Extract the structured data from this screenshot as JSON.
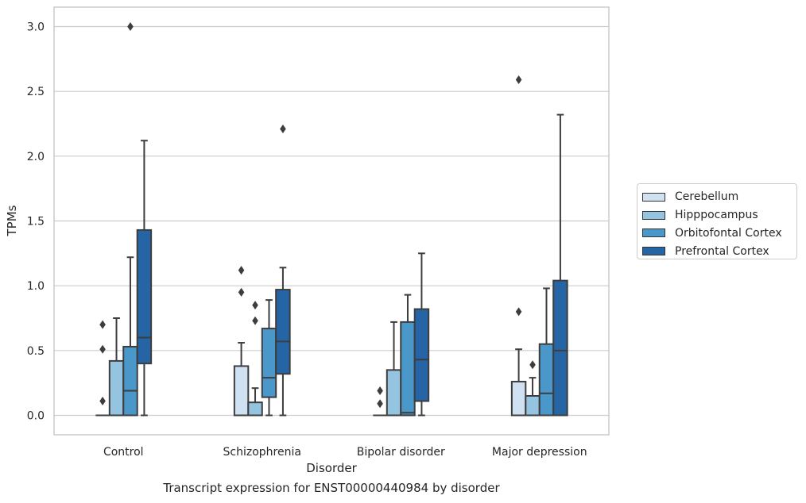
{
  "chart_data": {
    "type": "box",
    "xlabel": "Disorder",
    "ylabel": "TPMs",
    "caption": "Transcript expression for ENST00000440984 by disorder",
    "ylim": [
      -0.15,
      3.15
    ],
    "yticks": [
      0.0,
      0.5,
      1.0,
      1.5,
      2.0,
      2.5,
      3.0
    ],
    "ytick_labels": [
      "0.0",
      "0.5",
      "1.0",
      "1.5",
      "2.0",
      "2.5",
      "3.0"
    ],
    "grid": "horizontal",
    "legend_position": "right",
    "categories": [
      "Control",
      "Schizophrenia",
      "Bipolar disorder",
      "Major depression"
    ],
    "series": [
      {
        "name": "Cerebellum",
        "color": "#d0e1f2",
        "boxes": [
          {
            "whislo": 0.0,
            "q1": 0.0,
            "med": 0.0,
            "q3": 0.0,
            "whishi": 0.0,
            "fliers": [
              0.11,
              0.51,
              0.7
            ]
          },
          {
            "whislo": 0.0,
            "q1": 0.0,
            "med": 0.0,
            "q3": 0.38,
            "whishi": 0.56,
            "fliers": [
              0.95,
              1.12
            ]
          },
          {
            "whislo": 0.0,
            "q1": 0.0,
            "med": 0.0,
            "q3": 0.0,
            "whishi": 0.0,
            "fliers": [
              0.09,
              0.19
            ]
          },
          {
            "whislo": 0.0,
            "q1": 0.0,
            "med": 0.0,
            "q3": 0.26,
            "whishi": 0.51,
            "fliers": [
              0.8,
              2.59
            ]
          }
        ]
      },
      {
        "name": "Hipppocampus",
        "color": "#94c4df",
        "boxes": [
          {
            "whislo": 0.0,
            "q1": 0.0,
            "med": 0.0,
            "q3": 0.42,
            "whishi": 0.75,
            "fliers": []
          },
          {
            "whislo": 0.0,
            "q1": 0.0,
            "med": 0.0,
            "q3": 0.1,
            "whishi": 0.21,
            "fliers": [
              0.73,
              0.85
            ]
          },
          {
            "whislo": 0.0,
            "q1": 0.0,
            "med": 0.0,
            "q3": 0.35,
            "whishi": 0.72,
            "fliers": []
          },
          {
            "whislo": 0.0,
            "q1": 0.0,
            "med": 0.0,
            "q3": 0.15,
            "whishi": 0.29,
            "fliers": [
              0.39
            ]
          }
        ]
      },
      {
        "name": "Orbitofontal Cortex",
        "color": "#4a98c9",
        "boxes": [
          {
            "whislo": 0.0,
            "q1": 0.0,
            "med": 0.19,
            "q3": 0.53,
            "whishi": 1.22,
            "fliers": [
              3.0
            ]
          },
          {
            "whislo": 0.0,
            "q1": 0.14,
            "med": 0.29,
            "q3": 0.67,
            "whishi": 0.89,
            "fliers": []
          },
          {
            "whislo": 0.0,
            "q1": 0.0,
            "med": 0.02,
            "q3": 0.72,
            "whishi": 0.93,
            "fliers": []
          },
          {
            "whislo": 0.0,
            "q1": 0.0,
            "med": 0.17,
            "q3": 0.55,
            "whishi": 0.98,
            "fliers": []
          }
        ]
      },
      {
        "name": "Prefrontal Cortex",
        "color": "#2565a6",
        "boxes": [
          {
            "whislo": 0.0,
            "q1": 0.4,
            "med": 0.6,
            "q3": 1.43,
            "whishi": 2.12,
            "fliers": []
          },
          {
            "whislo": 0.0,
            "q1": 0.32,
            "med": 0.57,
            "q3": 0.97,
            "whishi": 1.14,
            "fliers": [
              2.21
            ]
          },
          {
            "whislo": 0.0,
            "q1": 0.11,
            "med": 0.43,
            "q3": 0.82,
            "whishi": 1.25,
            "fliers": []
          },
          {
            "whislo": 0.0,
            "q1": 0.0,
            "med": 0.5,
            "q3": 1.04,
            "whishi": 2.32,
            "fliers": []
          }
        ]
      }
    ]
  }
}
